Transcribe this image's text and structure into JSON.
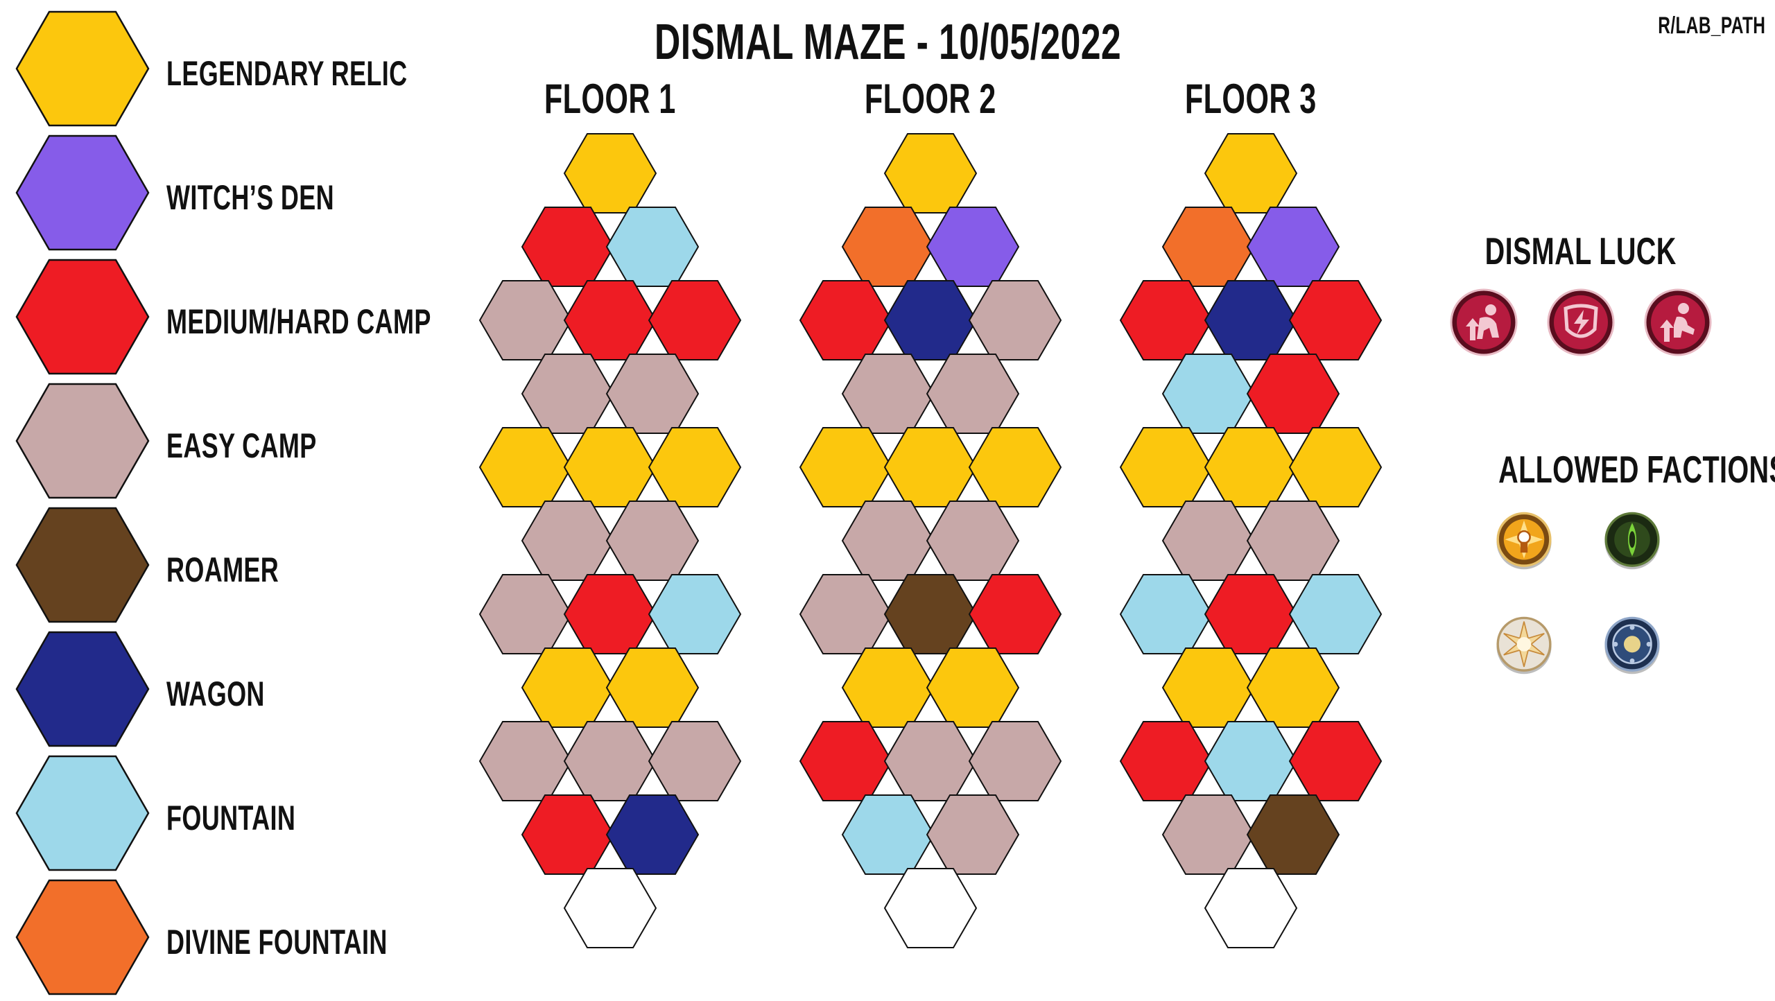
{
  "title": "DISMAL MAZE - 10/05/2022",
  "credit": "R/LAB_PATH",
  "legend": [
    {
      "label": "LEGENDARY RELIC",
      "color": "#FCC70D"
    },
    {
      "label": "WITCH’S DEN",
      "color": "#865CE9"
    },
    {
      "label": "MEDIUM/HARD CAMP",
      "color": "#EE1C24"
    },
    {
      "label": "EASY CAMP",
      "color": "#C7A8A8"
    },
    {
      "label": "ROAMER",
      "color": "#65421F"
    },
    {
      "label": "WAGON",
      "color": "#222A8B"
    },
    {
      "label": "FOUNTAIN",
      "color": "#9DD8EA"
    },
    {
      "label": "DIVINE FOUNTAIN",
      "color": "#F26F2A"
    }
  ],
  "floors": [
    {
      "title": "FLOOR 1",
      "rows": [
        [
          "relic"
        ],
        [
          "hard",
          "fountain"
        ],
        [
          "easy",
          "hard",
          "hard"
        ],
        [
          "easy",
          "easy"
        ],
        [
          "relic",
          "relic",
          "relic"
        ],
        [
          "easy",
          "easy"
        ],
        [
          "easy",
          "hard",
          "fountain"
        ],
        [
          "relic",
          "relic"
        ],
        [
          "easy",
          "easy",
          "easy"
        ],
        [
          "hard",
          "wagon"
        ],
        [
          "start"
        ]
      ]
    },
    {
      "title": "FLOOR 2",
      "rows": [
        [
          "relic"
        ],
        [
          "divine",
          "witch"
        ],
        [
          "hard",
          "wagon",
          "easy"
        ],
        [
          "easy",
          "easy"
        ],
        [
          "relic",
          "relic",
          "relic"
        ],
        [
          "easy",
          "easy"
        ],
        [
          "easy",
          "roamer",
          "hard"
        ],
        [
          "relic",
          "relic"
        ],
        [
          "hard",
          "easy",
          "easy"
        ],
        [
          "fountain",
          "easy"
        ],
        [
          "start"
        ]
      ]
    },
    {
      "title": "FLOOR 3",
      "rows": [
        [
          "relic"
        ],
        [
          "divine",
          "witch"
        ],
        [
          "hard",
          "wagon",
          "hard"
        ],
        [
          "fountain",
          "hard"
        ],
        [
          "relic",
          "relic",
          "relic"
        ],
        [
          "easy",
          "easy"
        ],
        [
          "fountain",
          "hard",
          "fountain"
        ],
        [
          "relic",
          "relic"
        ],
        [
          "hard",
          "fountain",
          "hard"
        ],
        [
          "easy",
          "roamer"
        ],
        [
          "start"
        ]
      ]
    }
  ],
  "tile_colors": {
    "relic": "#FCC70D",
    "witch": "#865CE9",
    "hard": "#EE1C24",
    "easy": "#C7A8A8",
    "roamer": "#65421F",
    "wagon": "#222A8B",
    "fountain": "#9DD8EA",
    "divine": "#F26F2A",
    "start": "#FFFFFF"
  },
  "dismal_luck": {
    "heading": "DISMAL LUCK",
    "icons": [
      "strength-up-icon",
      "energy-shield-icon",
      "kneel-arrow-up-icon"
    ]
  },
  "allowed_factions": {
    "heading": "ALLOWED FACTIONS",
    "icons": [
      "lightbearer-faction-icon",
      "wilder-faction-icon",
      "celestial-faction-icon",
      "graveborn-dimensional-faction-icon"
    ]
  }
}
